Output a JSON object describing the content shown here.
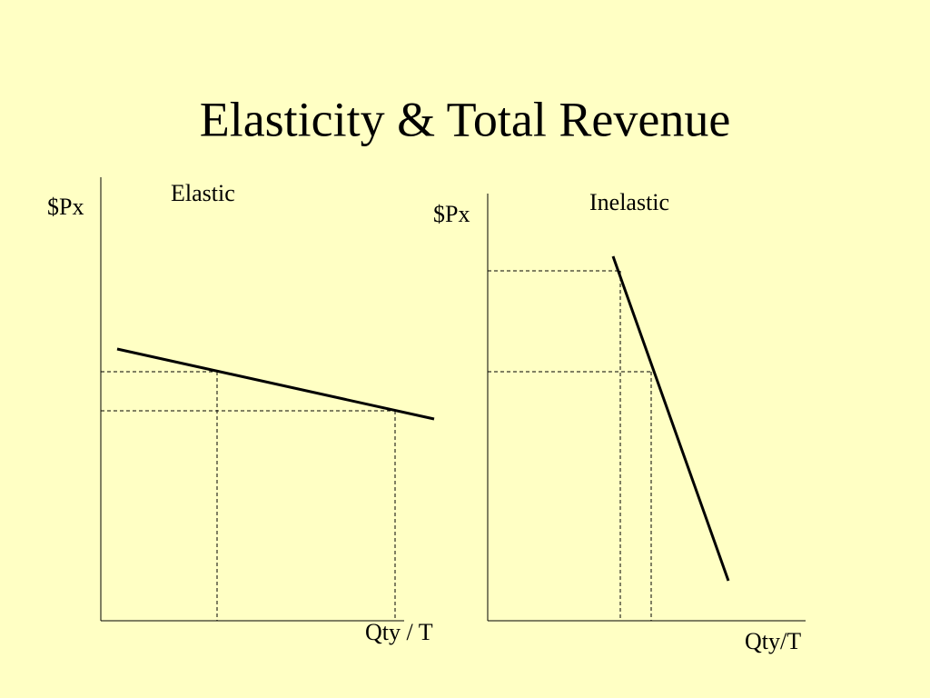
{
  "title": "Elasticity & Total Revenue",
  "panels": [
    {
      "label": "Elastic",
      "y_axis_label": "$Px",
      "x_axis_label": "Qty / T"
    },
    {
      "label": "Inelastic",
      "y_axis_label": "$Px",
      "x_axis_label": "Qty/T"
    }
  ]
}
